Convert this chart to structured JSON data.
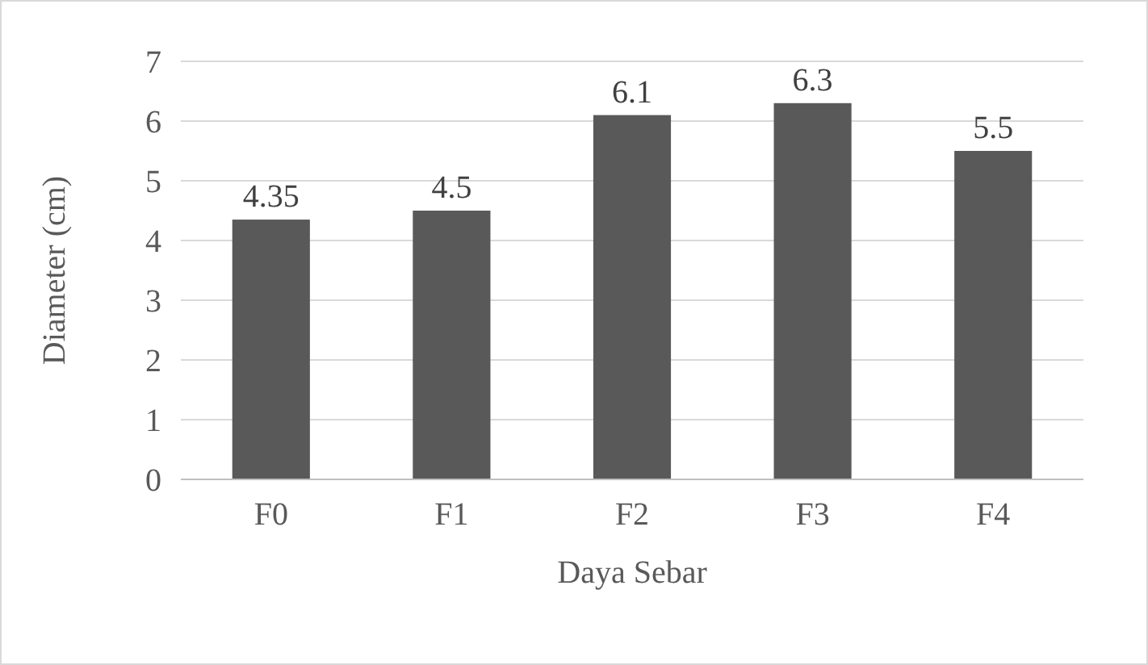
{
  "chart_data": {
    "type": "bar",
    "xlabel": "Daya Sebar",
    "ylabel": "Diameter (cm)",
    "categories": [
      "F0",
      "F1",
      "F2",
      "F3",
      "F4"
    ],
    "values": [
      4.35,
      4.5,
      6.1,
      6.3,
      5.5
    ],
    "color": "#595959",
    "ylim": [
      0,
      7
    ],
    "yticks": [
      0,
      1,
      2,
      3,
      4,
      5,
      6,
      7
    ],
    "grid": "y",
    "data_labels": true
  }
}
